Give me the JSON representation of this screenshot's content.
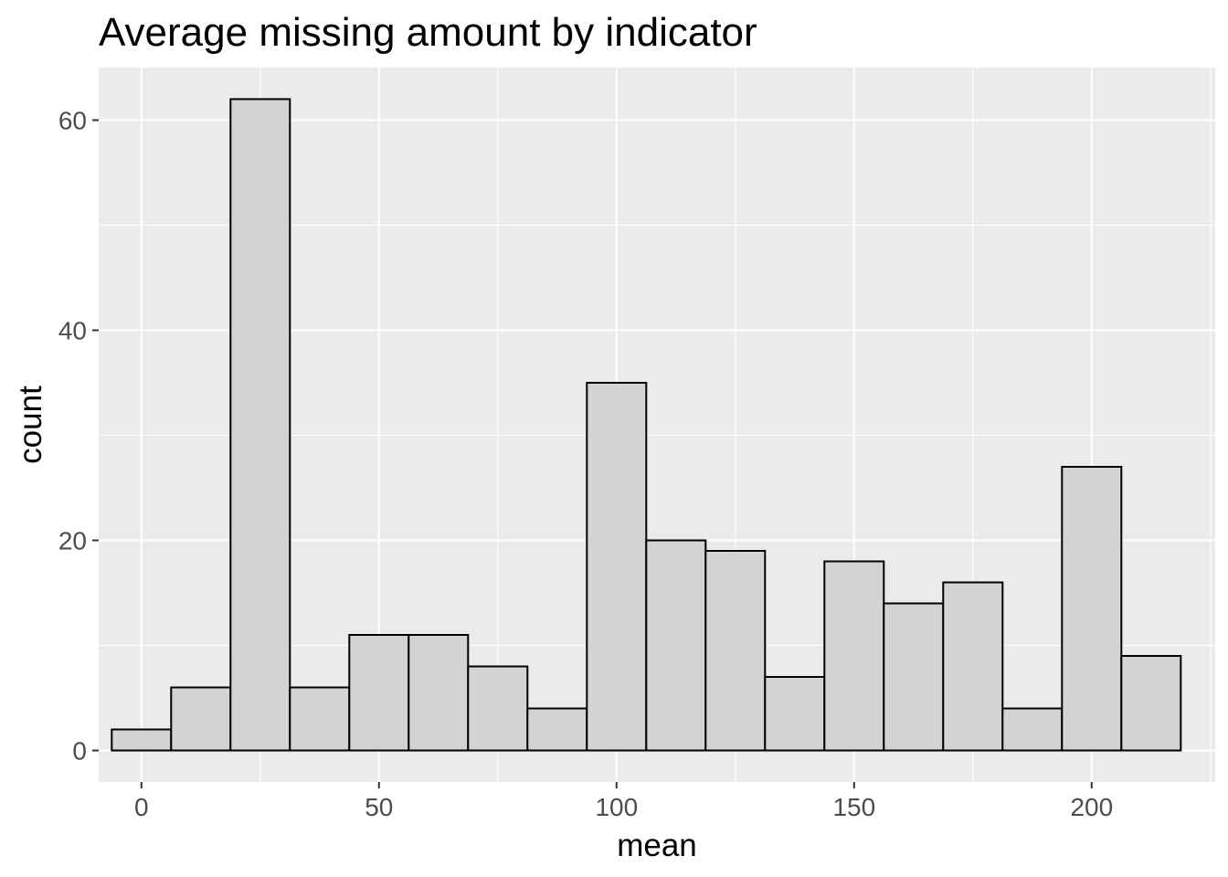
{
  "chart_data": {
    "type": "histogram",
    "title": "Average missing amount by indicator",
    "xlabel": "mean",
    "ylabel": "count",
    "xlim": [
      -9,
      226
    ],
    "ylim": [
      -3,
      65
    ],
    "x_ticks": [
      0,
      50,
      100,
      150,
      200
    ],
    "y_ticks": [
      0,
      20,
      40,
      60
    ],
    "bin_width": 12.5,
    "bins": [
      {
        "x0": -6.25,
        "x1": 6.25,
        "count": 2
      },
      {
        "x0": 6.25,
        "x1": 18.75,
        "count": 6
      },
      {
        "x0": 18.75,
        "x1": 31.25,
        "count": 62
      },
      {
        "x0": 31.25,
        "x1": 43.75,
        "count": 6
      },
      {
        "x0": 43.75,
        "x1": 56.25,
        "count": 11
      },
      {
        "x0": 56.25,
        "x1": 68.75,
        "count": 11
      },
      {
        "x0": 68.75,
        "x1": 81.25,
        "count": 8
      },
      {
        "x0": 81.25,
        "x1": 93.75,
        "count": 4
      },
      {
        "x0": 93.75,
        "x1": 106.25,
        "count": 35
      },
      {
        "x0": 106.25,
        "x1": 118.75,
        "count": 20
      },
      {
        "x0": 118.75,
        "x1": 131.25,
        "count": 19
      },
      {
        "x0": 131.25,
        "x1": 143.75,
        "count": 7
      },
      {
        "x0": 143.75,
        "x1": 156.25,
        "count": 18
      },
      {
        "x0": 156.25,
        "x1": 168.75,
        "count": 14
      },
      {
        "x0": 168.75,
        "x1": 181.25,
        "count": 16
      },
      {
        "x0": 181.25,
        "x1": 193.75,
        "count": 4
      },
      {
        "x0": 193.75,
        "x1": 206.25,
        "count": 27
      },
      {
        "x0": 206.25,
        "x1": 218.75,
        "count": 9
      }
    ],
    "bar_fill": "#d3d3d3",
    "bar_stroke": "#000000",
    "panel_background": "#ebebeb",
    "grid_color": "#ffffff",
    "grid": true,
    "legend": "none"
  }
}
